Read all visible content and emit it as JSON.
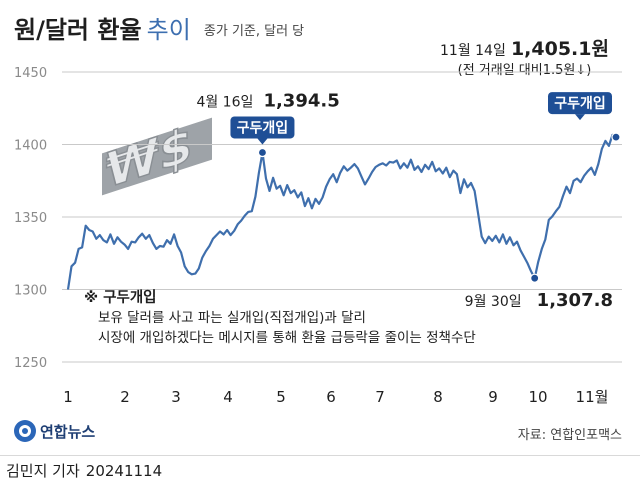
{
  "header": {
    "title": "원/달러 환율",
    "title_suffix": "추이",
    "subtitle": "종가 기준, 달러 당"
  },
  "footer": {
    "author": "김민지 기자",
    "date": "20241114",
    "logo_text": "연합뉴스",
    "source": "자료: 연합인포맥스"
  },
  "note": {
    "title": "※ 구두개입",
    "lines": [
      "보유 달러를 사고 파는 실개입(직접개입)과 달리",
      "시장에 개입하겠다는 메시지를 통해 환율 급등락을 줄이는 정책수단"
    ]
  },
  "last_callout": {
    "date": "11월 14일",
    "value": "1,405.1원",
    "change": "(전 거래일 대비1.5원↓)"
  },
  "colors": {
    "line": "#3f6fad",
    "badge": "#1f4f96",
    "grid": "#c9c9c9",
    "text": "#1f1f1f",
    "accent": "#3d6fb0"
  },
  "chart_data": {
    "type": "line",
    "title": "원/달러 환율 추이",
    "ylim": [
      1250,
      1450
    ],
    "yticks": [
      "1450",
      "1400",
      "1350",
      "1300",
      "1250"
    ],
    "xticks": [
      "1",
      "2",
      "3",
      "4",
      "5",
      "6",
      "7",
      "8",
      "9",
      "10",
      "11월"
    ],
    "grid": true,
    "series": [
      {
        "values": [
          1300.0,
          1316.0,
          1318.5,
          1328.0,
          1329.0,
          1344.0,
          1341.0,
          1340.0,
          1335.0,
          1337.5,
          1334.0,
          1332.5,
          1338.0,
          1331.5,
          1336.0,
          1333.0,
          1331.0,
          1328.0,
          1333.0,
          1332.5,
          1336.0,
          1338.5,
          1335.0,
          1337.5,
          1332.0,
          1328.0,
          1330.0,
          1329.5,
          1334.0,
          1331.5,
          1338.0,
          1330.0,
          1325.5,
          1316.0,
          1312.0,
          1310.5,
          1311.0,
          1314.5,
          1322.0,
          1326.5,
          1330.0,
          1335.0,
          1337.5,
          1340.0,
          1338.0,
          1341.0,
          1337.5,
          1340.5,
          1345.0,
          1347.5,
          1351.0,
          1353.5,
          1354.0,
          1364.0,
          1380.5,
          1394.5,
          1376.5,
          1368.0,
          1377.0,
          1369.5,
          1371.5,
          1365.0,
          1372.0,
          1366.5,
          1368.5,
          1363.5,
          1367.0,
          1357.5,
          1363.0,
          1356.0,
          1362.5,
          1359.0,
          1363.5,
          1371.0,
          1376.0,
          1379.5,
          1374.0,
          1380.5,
          1385.0,
          1382.0,
          1384.0,
          1386.5,
          1383.5,
          1378.0,
          1372.5,
          1376.5,
          1381.0,
          1384.5,
          1386.0,
          1387.0,
          1385.5,
          1388.0,
          1387.5,
          1389.0,
          1383.5,
          1387.0,
          1384.0,
          1389.5,
          1382.5,
          1385.0,
          1381.0,
          1386.0,
          1383.0,
          1388.0,
          1381.5,
          1383.5,
          1380.0,
          1384.0,
          1377.5,
          1382.0,
          1379.5,
          1366.5,
          1376.0,
          1370.5,
          1373.5,
          1368.0,
          1352.5,
          1336.5,
          1332.0,
          1336.5,
          1333.5,
          1337.0,
          1332.5,
          1338.0,
          1331.5,
          1336.0,
          1330.5,
          1333.0,
          1327.0,
          1322.5,
          1318.0,
          1312.5,
          1307.8,
          1319.0,
          1328.0,
          1334.5,
          1348.0,
          1350.5,
          1354.0,
          1357.0,
          1364.5,
          1371.0,
          1366.5,
          1375.0,
          1376.5,
          1374.0,
          1378.5,
          1381.5,
          1384.0,
          1379.0,
          1386.5,
          1397.0,
          1402.5,
          1399.0,
          1406.6,
          1405.1
        ]
      }
    ],
    "annotations": [
      {
        "label": "4월 16일",
        "value": "1,394.5"
      },
      {
        "label": "9월 30일",
        "value": "1,307.8"
      },
      {
        "label": "11월 14일",
        "value": "1,405.1원"
      }
    ],
    "badges": [
      "구두개입",
      "구두개입"
    ]
  }
}
